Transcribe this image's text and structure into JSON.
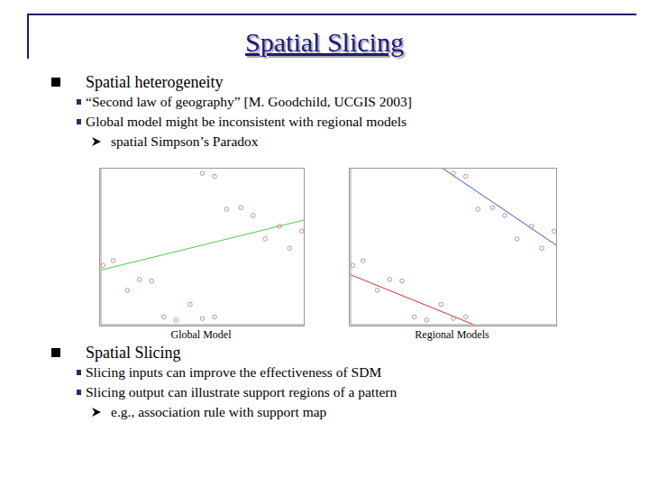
{
  "title": "Spatial Slicing",
  "sections": [
    {
      "text": "Spatial heterogeneity",
      "items": [
        {
          "text": "“Second law of geography” [M. Goodchild, UCGIS 2003]",
          "items": []
        },
        {
          "text": "Global model might be inconsistent with regional models",
          "items": [
            "spatial Simpson’s Paradox"
          ]
        }
      ]
    },
    {
      "text": "Spatial Slicing",
      "items": [
        {
          "text": "Slicing inputs can improve the effectiveness of SDM",
          "items": []
        },
        {
          "text": "Slicing output can illustrate support regions of a pattern",
          "items": [
            "e.g., association rule with support map"
          ]
        }
      ]
    }
  ],
  "chart_data": [
    {
      "type": "scatter",
      "title": "Global Model",
      "xlim": [
        0,
        10
      ],
      "ylim": [
        0,
        10
      ],
      "tick_labels": false,
      "series": [
        {
          "type": "scatter",
          "marker": "circle",
          "color": "#b07878",
          "x": [
            5.0,
            5.6,
            6.2,
            6.9,
            7.5,
            8.8,
            8.1,
            9.3,
            9.9,
            0.6,
            0.1,
            1.9,
            2.5,
            1.3,
            4.4,
            3.1,
            3.7,
            5.0,
            5.6
          ],
          "values": [
            9.7,
            9.5,
            7.4,
            7.5,
            7.0,
            6.3,
            5.5,
            4.9,
            6.0,
            4.1,
            3.8,
            2.9,
            2.8,
            2.2,
            1.3,
            0.5,
            0.3,
            0.4,
            0.5
          ]
        },
        {
          "type": "line",
          "color": "#44cc44",
          "x": [
            0,
            10
          ],
          "values": [
            3.5,
            6.7
          ]
        }
      ]
    },
    {
      "type": "scatter",
      "title": "Regional Models",
      "xlim": [
        0,
        10
      ],
      "ylim": [
        0,
        10
      ],
      "tick_labels": false,
      "series": [
        {
          "type": "scatter",
          "marker": "circle",
          "color": "#b07878",
          "x": [
            5.0,
            5.6,
            6.2,
            6.9,
            7.5,
            8.8,
            8.1,
            9.3,
            9.9,
            0.6,
            0.1,
            1.9,
            2.5,
            1.3,
            4.4,
            3.1,
            3.7,
            5.0,
            5.6
          ],
          "values": [
            9.7,
            9.5,
            7.4,
            7.5,
            7.0,
            6.3,
            5.5,
            4.9,
            6.0,
            4.1,
            3.8,
            2.9,
            2.8,
            2.2,
            1.3,
            0.5,
            0.3,
            0.4,
            0.5
          ]
        },
        {
          "type": "line",
          "color": "#3355cc",
          "x": [
            4.5,
            10
          ],
          "values": [
            10,
            5.1
          ]
        },
        {
          "type": "line",
          "color": "#cc3333",
          "x": [
            0,
            6.0
          ],
          "values": [
            3.2,
            0
          ]
        }
      ]
    }
  ]
}
